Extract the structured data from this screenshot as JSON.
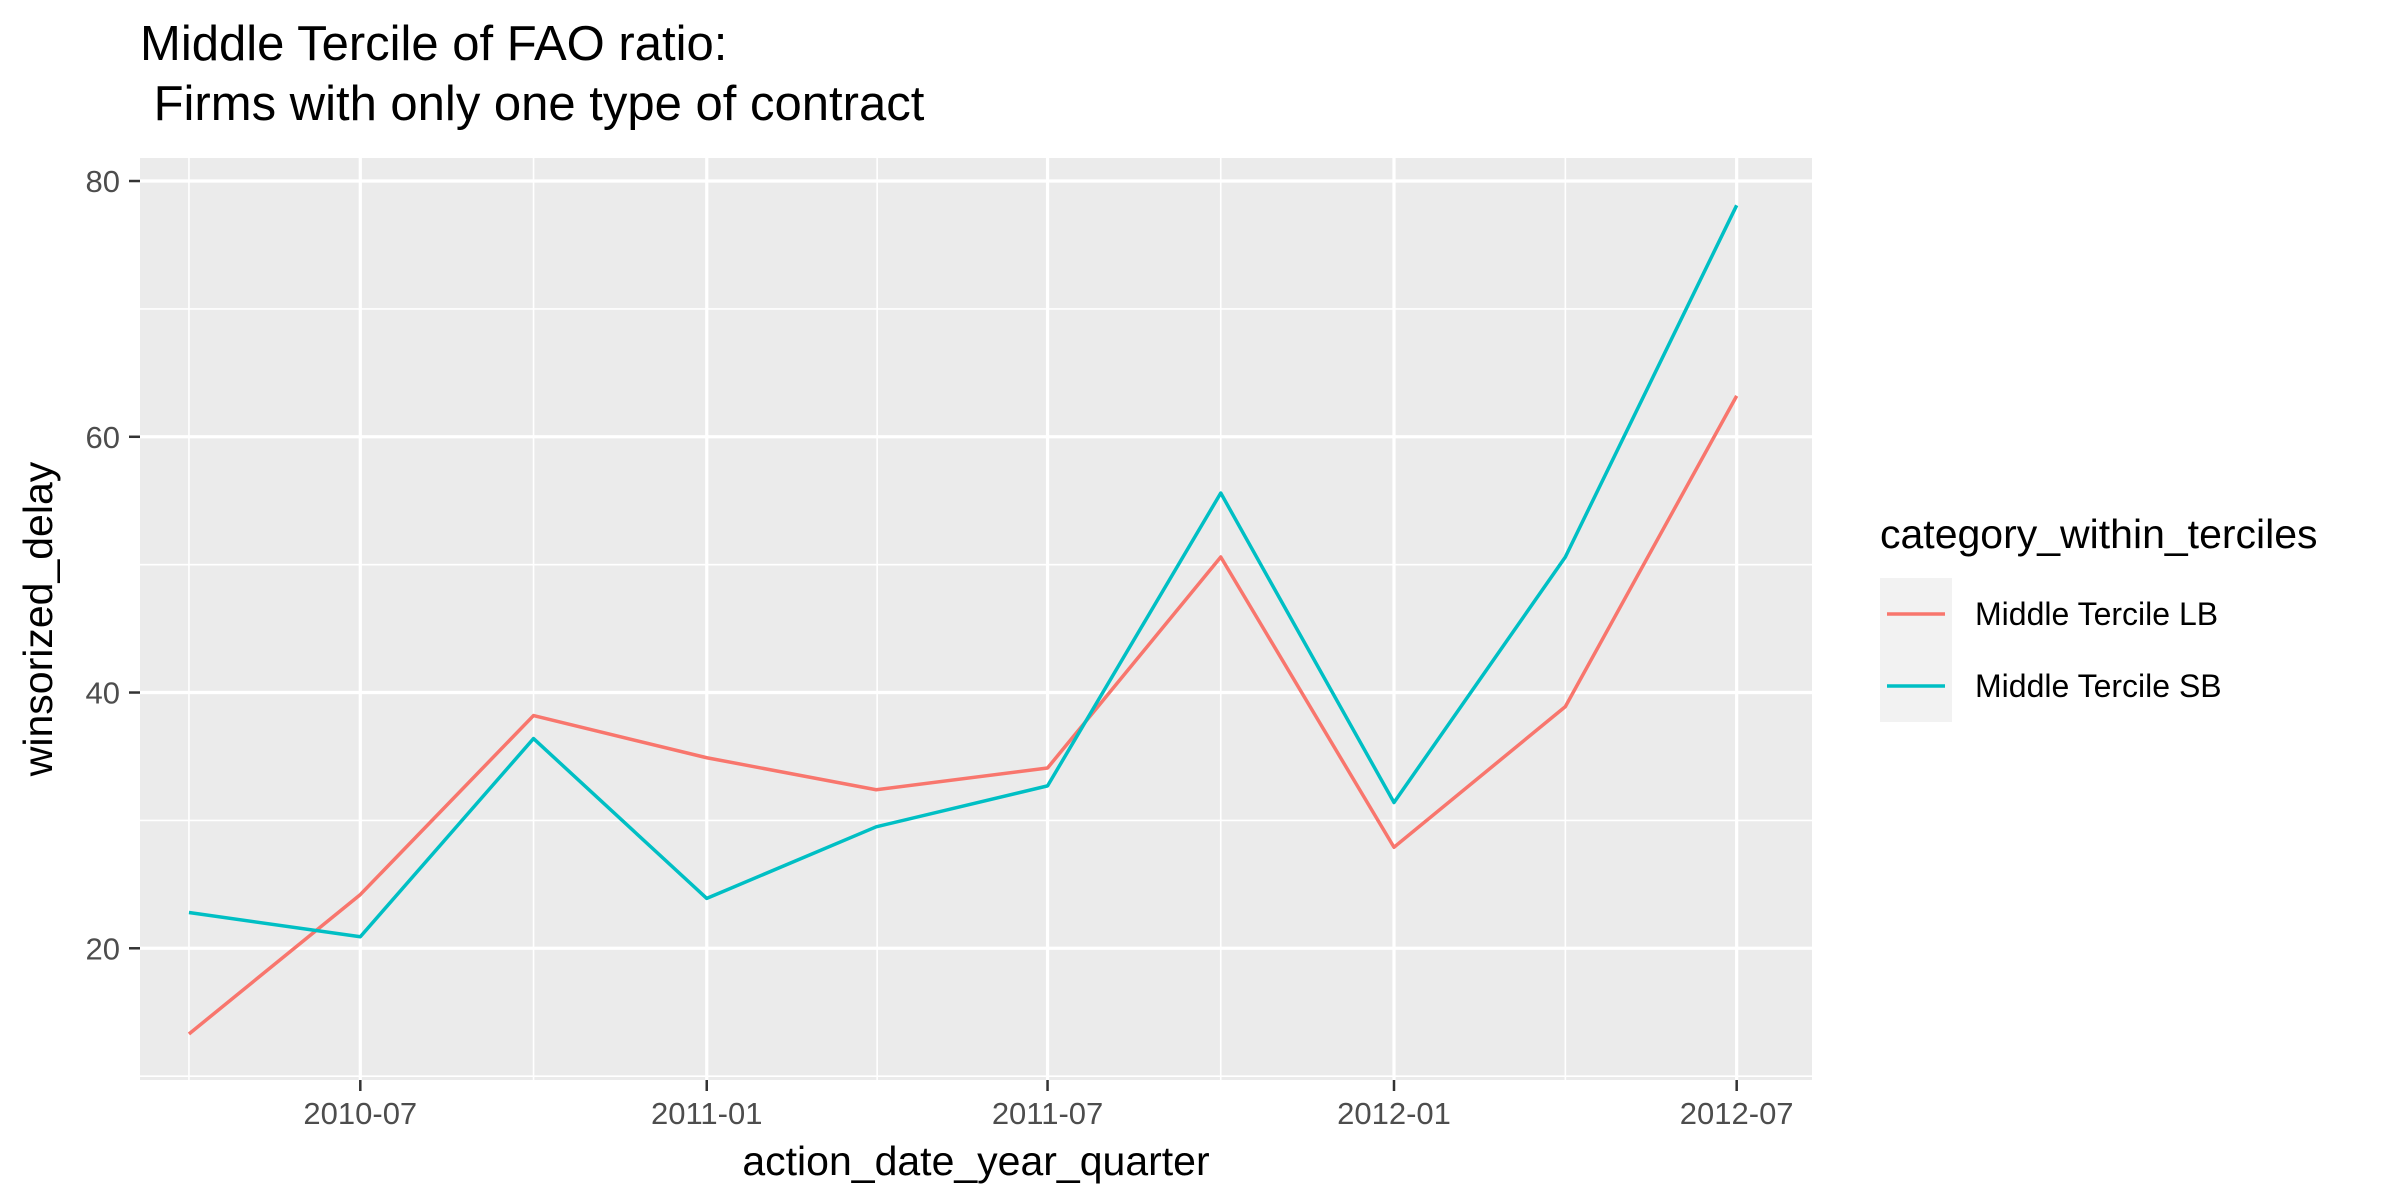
{
  "chart_data": {
    "type": "line",
    "title_lines": [
      "Middle Tercile of FAO ratio:",
      " Firms with only one type of contract"
    ],
    "xlabel": "action_date_year_quarter",
    "ylabel": "winsorized_delay",
    "x": [
      "2010-04-01",
      "2010-07-01",
      "2010-10-01",
      "2011-01-01",
      "2011-04-01",
      "2011-07-01",
      "2011-10-01",
      "2012-01-01",
      "2012-04-01",
      "2012-07-01"
    ],
    "x_ticks": [
      "2010-07-01",
      "2011-01-01",
      "2011-07-01",
      "2012-01-01",
      "2012-07-01"
    ],
    "x_tick_labels": [
      "2010-07",
      "2011-01",
      "2011-07",
      "2012-01",
      "2012-07"
    ],
    "xlim": [
      "2010-03-06",
      "2012-08-10"
    ],
    "ylim": [
      9.7,
      81.8
    ],
    "y_ticks": [
      20,
      40,
      60,
      80
    ],
    "y_tick_labels": [
      "20",
      "40",
      "60",
      "80"
    ],
    "series": [
      {
        "name": "Middle Tercile LB",
        "color": "#F8766D",
        "values": [
          13.3,
          24.2,
          38.2,
          34.9,
          32.4,
          34.1,
          50.6,
          27.9,
          38.9,
          63.2
        ]
      },
      {
        "name": "Middle Tercile SB",
        "color": "#00BFC4",
        "values": [
          22.8,
          20.9,
          36.4,
          23.9,
          29.5,
          32.7,
          55.6,
          31.4,
          50.6,
          78.1
        ]
      }
    ],
    "grid": true,
    "panel_background": "#EBEBEB",
    "grid_color": "#FFFFFF",
    "legend": {
      "title": "category_within_terciles",
      "position": "right"
    }
  }
}
